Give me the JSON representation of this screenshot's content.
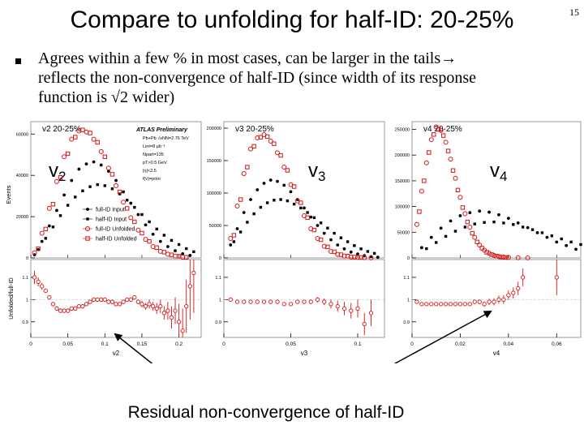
{
  "slide": {
    "title": "Compare to unfolding for half-ID: 20-25%",
    "page_number": "15",
    "bullet_line1": "Agrees within a few % in most cases, can be larger in the tails",
    "bullet_arrow": "→",
    "bullet_line2": "reflects the non-convergence of half-ID (since width of its response",
    "bullet_line3": "function is √2 wider)",
    "caption": "Residual non-convergence of half-ID"
  },
  "colors": {
    "red": "#d41414",
    "black": "#000000",
    "frame": "#999999"
  },
  "chart_data": [
    {
      "type": "scatter",
      "panel": "v2",
      "big_label": "v",
      "big_sub": "2",
      "corner_label": "v2 20-25%",
      "title": "",
      "xlabel": "v2",
      "ylabel": "Events",
      "ratio_ylabel": "Unfolded/full-ID",
      "xlim": [
        0,
        0.23
      ],
      "ylim": [
        0,
        66000
      ],
      "yticks": [
        0,
        20000,
        40000,
        60000
      ],
      "xticks": [
        0,
        0.05,
        0.1,
        0.15,
        0.2
      ],
      "ratio_ylim": [
        0.83,
        1.18
      ],
      "ratio_yticks": [
        0.9,
        1,
        1.1
      ],
      "atlas_text": [
        "ATLAS Preliminary",
        "Pb+Pb √sNN=2.76 TeV",
        "Lint=8 μb⁻¹",
        "Npart=135",
        "pT>0.5 GeV",
        "|η|<2.5",
        "f(v)=prior"
      ],
      "legend": [
        "full-ID Input",
        "half-ID Input",
        "full-ID Unfolded",
        "half-ID Unfolded"
      ],
      "series": [
        {
          "name": "full-ID Input",
          "color": "black",
          "marker": "circle-filled",
          "x": [
            0.005,
            0.015,
            0.025,
            0.035,
            0.045,
            0.055,
            0.065,
            0.075,
            0.085,
            0.095,
            0.105,
            0.115,
            0.125,
            0.135,
            0.145,
            0.155,
            0.165,
            0.175,
            0.185,
            0.195,
            0.205,
            0.215
          ],
          "y": [
            1500,
            8000,
            15500,
            23000,
            30500,
            37500,
            43000,
            45500,
            46500,
            45000,
            42000,
            37500,
            32000,
            26500,
            21000,
            16000,
            11500,
            8000,
            5500,
            3500,
            2000,
            1200
          ]
        },
        {
          "name": "half-ID Input",
          "color": "black",
          "marker": "square-filled",
          "x": [
            0.01,
            0.02,
            0.03,
            0.04,
            0.05,
            0.06,
            0.07,
            0.08,
            0.09,
            0.1,
            0.11,
            0.12,
            0.13,
            0.14,
            0.15,
            0.16,
            0.17,
            0.18,
            0.19,
            0.2,
            0.21,
            0.22
          ],
          "y": [
            4000,
            9500,
            15000,
            20500,
            25500,
            29500,
            32500,
            34500,
            35500,
            35000,
            33500,
            31000,
            28000,
            24500,
            21000,
            17500,
            14000,
            11000,
            8500,
            6500,
            4500,
            3000
          ]
        },
        {
          "name": "full-ID Unfolded",
          "color": "red",
          "marker": "circle-open",
          "x": [
            0.005,
            0.015,
            0.025,
            0.035,
            0.045,
            0.055,
            0.065,
            0.075,
            0.085,
            0.095,
            0.105,
            0.115,
            0.125,
            0.135,
            0.145,
            0.155,
            0.165,
            0.175,
            0.185,
            0.195,
            0.205
          ],
          "y": [
            2500,
            12000,
            24000,
            37000,
            49000,
            57500,
            61500,
            61000,
            57500,
            51500,
            43500,
            35000,
            27000,
            19500,
            13500,
            9000,
            5500,
            3200,
            1800,
            900,
            400
          ]
        },
        {
          "name": "half-ID Unfolded",
          "color": "red",
          "marker": "square-open",
          "x": [
            0.01,
            0.02,
            0.03,
            0.04,
            0.05,
            0.06,
            0.07,
            0.08,
            0.09,
            0.1,
            0.11,
            0.12,
            0.13,
            0.14,
            0.15,
            0.16,
            0.17,
            0.18,
            0.19,
            0.2,
            0.21
          ],
          "y": [
            4500,
            14000,
            26000,
            39000,
            50500,
            58500,
            62000,
            60500,
            56000,
            49000,
            40500,
            32000,
            24000,
            17500,
            12000,
            8000,
            5000,
            2800,
            1500,
            800,
            300
          ]
        }
      ],
      "ratio": {
        "x": [
          0.005,
          0.01,
          0.015,
          0.02,
          0.025,
          0.03,
          0.035,
          0.04,
          0.045,
          0.05,
          0.055,
          0.06,
          0.065,
          0.07,
          0.075,
          0.08,
          0.085,
          0.09,
          0.095,
          0.1,
          0.105,
          0.11,
          0.115,
          0.12,
          0.125,
          0.13,
          0.135,
          0.14,
          0.145,
          0.15,
          0.155,
          0.16,
          0.165,
          0.17,
          0.175,
          0.18,
          0.185,
          0.19,
          0.195,
          0.2,
          0.205,
          0.21,
          0.215,
          0.22
        ],
        "y": [
          1.1,
          1.08,
          1.06,
          1.04,
          1.01,
          0.98,
          0.96,
          0.95,
          0.95,
          0.95,
          0.96,
          0.96,
          0.97,
          0.97,
          0.98,
          0.99,
          1.0,
          1.0,
          1.0,
          1.0,
          0.99,
          0.99,
          0.98,
          0.98,
          0.99,
          1.0,
          1.0,
          1.01,
          0.99,
          0.98,
          0.97,
          0.98,
          0.97,
          0.96,
          0.97,
          0.94,
          0.95,
          0.92,
          0.95,
          0.9,
          0.86,
          0.97,
          1.06,
          1.12
        ],
        "err": [
          0.03,
          0.02,
          0.015,
          0.01,
          0.01,
          0.01,
          0.01,
          0.01,
          0.01,
          0.01,
          0.01,
          0.01,
          0.01,
          0.01,
          0.01,
          0.01,
          0.01,
          0.01,
          0.01,
          0.01,
          0.01,
          0.01,
          0.01,
          0.01,
          0.01,
          0.01,
          0.01,
          0.01,
          0.01,
          0.015,
          0.015,
          0.02,
          0.02,
          0.025,
          0.03,
          0.03,
          0.04,
          0.05,
          0.06,
          0.08,
          0.1,
          0.12,
          0.15,
          0.18
        ]
      }
    },
    {
      "type": "scatter",
      "panel": "v3",
      "big_label": "v",
      "big_sub": "3",
      "corner_label": "v3 20-25%",
      "title": "",
      "xlabel": "v3",
      "ylabel": "",
      "xlim": [
        0,
        0.12
      ],
      "ylim": [
        0,
        210000
      ],
      "yticks": [
        0,
        50000,
        100000,
        150000,
        200000
      ],
      "xticks": [
        0,
        0.05,
        0.1
      ],
      "ratio_ylim": [
        0.83,
        1.18
      ],
      "ratio_yticks": [
        0.9,
        1,
        1.1
      ],
      "series": [
        {
          "name": "full-ID Input",
          "color": "black",
          "marker": "circle-filled",
          "x": [
            0.005,
            0.01,
            0.015,
            0.02,
            0.025,
            0.03,
            0.035,
            0.04,
            0.045,
            0.05,
            0.055,
            0.06,
            0.065,
            0.07,
            0.075,
            0.08,
            0.085,
            0.09,
            0.095,
            0.1,
            0.105,
            0.11,
            0.115
          ],
          "y": [
            20000,
            45000,
            70000,
            90000,
            105000,
            115000,
            120000,
            118000,
            112000,
            102000,
            90000,
            77000,
            63000,
            50000,
            38000,
            28000,
            20000,
            14000,
            9000,
            6000,
            3500,
            2000,
            1000
          ]
        },
        {
          "name": "half-ID Input",
          "color": "black",
          "marker": "square-filled",
          "x": [
            0.0075,
            0.0125,
            0.0175,
            0.0225,
            0.0275,
            0.0325,
            0.0375,
            0.0425,
            0.0475,
            0.0525,
            0.0575,
            0.0625,
            0.0675,
            0.0725,
            0.0775,
            0.0825,
            0.0875,
            0.0925,
            0.0975,
            0.1025,
            0.1075,
            0.1125
          ],
          "y": [
            25000,
            40000,
            55000,
            68000,
            78000,
            85000,
            89000,
            90000,
            88000,
            83000,
            77000,
            70000,
            62000,
            54000,
            46000,
            38000,
            31000,
            25000,
            19000,
            14000,
            10000,
            7000
          ]
        },
        {
          "name": "full-ID Unfolded",
          "color": "red",
          "marker": "circle-open",
          "x": [
            0.005,
            0.01,
            0.015,
            0.02,
            0.025,
            0.03,
            0.035,
            0.04,
            0.045,
            0.05,
            0.055,
            0.06,
            0.065,
            0.07,
            0.075,
            0.08,
            0.085,
            0.09,
            0.095,
            0.1,
            0.105,
            0.11
          ],
          "y": [
            30000,
            80000,
            130000,
            168000,
            185000,
            190000,
            180000,
            162000,
            140000,
            113000,
            88000,
            65000,
            45000,
            30000,
            18000,
            10000,
            5500,
            3000,
            1500,
            800,
            400,
            200
          ]
        },
        {
          "name": "half-ID Unfolded",
          "color": "red",
          "marker": "square-open",
          "x": [
            0.0075,
            0.0125,
            0.0175,
            0.0225,
            0.0275,
            0.0325,
            0.0375,
            0.0425,
            0.0475,
            0.0525,
            0.0575,
            0.0625,
            0.0675,
            0.0725,
            0.0775,
            0.0825,
            0.0875,
            0.0925,
            0.0975,
            0.1025
          ],
          "y": [
            35000,
            90000,
            140000,
            172000,
            186000,
            187000,
            176000,
            158000,
            135000,
            110000,
            85000,
            62000,
            43000,
            28000,
            17000,
            9500,
            5000,
            2800,
            1400,
            700
          ]
        }
      ],
      "ratio": {
        "x": [
          0.005,
          0.01,
          0.015,
          0.02,
          0.025,
          0.03,
          0.035,
          0.04,
          0.045,
          0.05,
          0.055,
          0.06,
          0.065,
          0.07,
          0.075,
          0.08,
          0.085,
          0.09,
          0.095,
          0.1,
          0.105,
          0.11
        ],
        "y": [
          1.0,
          0.99,
          0.99,
          0.99,
          0.99,
          0.99,
          0.99,
          0.99,
          0.98,
          0.98,
          0.99,
          0.99,
          0.99,
          1.0,
          0.99,
          0.98,
          0.97,
          0.96,
          0.95,
          0.96,
          0.89,
          0.94
        ],
        "err": [
          0.01,
          0.008,
          0.006,
          0.006,
          0.006,
          0.006,
          0.006,
          0.006,
          0.006,
          0.006,
          0.007,
          0.008,
          0.01,
          0.012,
          0.015,
          0.02,
          0.025,
          0.03,
          0.035,
          0.04,
          0.05,
          0.06
        ]
      }
    },
    {
      "type": "scatter",
      "panel": "v4",
      "big_label": "v",
      "big_sub": "4",
      "corner_label": "v4 20-25%",
      "title": "",
      "xlabel": "v4",
      "ylabel": "",
      "xlim": [
        0,
        0.07
      ],
      "ylim": [
        0,
        265000
      ],
      "yticks": [
        0,
        50000,
        100000,
        150000,
        200000,
        250000
      ],
      "xticks": [
        0,
        0.02,
        0.04,
        0.06
      ],
      "ratio_ylim": [
        0.83,
        1.18
      ],
      "ratio_yticks": [
        0.9,
        1,
        1.1
      ],
      "series": [
        {
          "name": "full-ID Input",
          "color": "black",
          "marker": "circle-filled",
          "x": [
            0.004,
            0.008,
            0.012,
            0.016,
            0.02,
            0.024,
            0.028,
            0.032,
            0.036,
            0.04,
            0.044,
            0.048,
            0.052,
            0.056,
            0.06,
            0.064,
            0.068
          ],
          "y": [
            20000,
            40000,
            58000,
            72000,
            82000,
            88000,
            91000,
            89000,
            84000,
            77000,
            68000,
            59000,
            49000,
            40000,
            31000,
            24000,
            17000
          ]
        },
        {
          "name": "half-ID Input",
          "color": "black",
          "marker": "square-filled",
          "x": [
            0.006,
            0.01,
            0.014,
            0.018,
            0.022,
            0.026,
            0.03,
            0.034,
            0.038,
            0.042,
            0.046,
            0.05,
            0.054,
            0.058,
            0.062,
            0.066,
            0.07
          ],
          "y": [
            18000,
            30000,
            42000,
            52000,
            60000,
            66000,
            69000,
            70000,
            68000,
            65000,
            60000,
            55000,
            49000,
            43000,
            37000,
            31000,
            26000
          ]
        },
        {
          "name": "full-ID Unfolded",
          "color": "red",
          "marker": "circle-open",
          "x": [
            0.002,
            0.004,
            0.006,
            0.008,
            0.01,
            0.012,
            0.014,
            0.016,
            0.018,
            0.02,
            0.022,
            0.024,
            0.026,
            0.028,
            0.03,
            0.032,
            0.034,
            0.036,
            0.038,
            0.04,
            0.044,
            0.048
          ],
          "y": [
            65000,
            130000,
            185000,
            230000,
            255000,
            248000,
            225000,
            192000,
            155000,
            118000,
            86000,
            60000,
            40000,
            25000,
            15000,
            9000,
            5000,
            2800,
            1500,
            800,
            300,
            100
          ]
        },
        {
          "name": "half-ID Unfolded",
          "color": "red",
          "marker": "square-open",
          "x": [
            0.003,
            0.005,
            0.007,
            0.009,
            0.011,
            0.013,
            0.015,
            0.017,
            0.019,
            0.021,
            0.023,
            0.025,
            0.027,
            0.029,
            0.031,
            0.033,
            0.035,
            0.037,
            0.039
          ],
          "y": [
            90000,
            150000,
            205000,
            240000,
            250000,
            238000,
            208000,
            170000,
            132000,
            98000,
            70000,
            48000,
            31000,
            19000,
            11000,
            6500,
            3500,
            1800,
            900
          ]
        }
      ],
      "ratio": {
        "x": [
          0.002,
          0.004,
          0.006,
          0.008,
          0.01,
          0.012,
          0.014,
          0.016,
          0.018,
          0.02,
          0.022,
          0.024,
          0.026,
          0.028,
          0.03,
          0.032,
          0.034,
          0.036,
          0.038,
          0.04,
          0.042,
          0.044,
          0.046,
          0.06
        ],
        "y": [
          0.99,
          0.98,
          0.98,
          0.98,
          0.98,
          0.98,
          0.98,
          0.98,
          0.98,
          0.98,
          0.98,
          0.98,
          0.99,
          0.99,
          0.98,
          0.99,
          0.99,
          1.0,
          1.0,
          1.02,
          1.03,
          1.05,
          1.1,
          1.1
        ],
        "err": [
          0.008,
          0.006,
          0.005,
          0.005,
          0.005,
          0.005,
          0.005,
          0.005,
          0.005,
          0.005,
          0.006,
          0.007,
          0.008,
          0.01,
          0.012,
          0.014,
          0.016,
          0.018,
          0.02,
          0.022,
          0.025,
          0.03,
          0.04,
          0.08
        ]
      }
    }
  ]
}
